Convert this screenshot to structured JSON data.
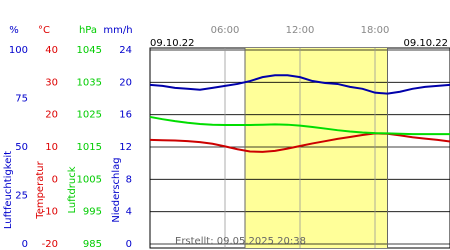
{
  "chart_data": {
    "type": "line",
    "date_left": "09.10.22",
    "date_right": "09.10.22",
    "created": "Erstellt: 09.05.2025 20:38",
    "x": [
      0,
      1,
      2,
      3,
      4,
      5,
      6,
      7,
      8,
      9,
      10,
      11,
      12,
      13,
      14,
      15,
      16,
      17,
      18,
      19,
      20,
      21,
      22,
      23,
      24
    ],
    "xlim": [
      0,
      24
    ],
    "xticks": [
      {
        "value": 6,
        "label": "06:00"
      },
      {
        "value": 12,
        "label": "12:00"
      },
      {
        "value": 18,
        "label": "18:00"
      }
    ],
    "daylight": [
      7.6,
      19
    ],
    "grid": true,
    "axes": [
      {
        "unit": "%",
        "title": "Luftfeuchtigkeit",
        "color": "#0000cc",
        "lim": [
          0,
          100
        ],
        "ticks": [
          0,
          25,
          50,
          75,
          100
        ]
      },
      {
        "unit": "°C",
        "title": "Temperatur",
        "color": "#dd0000",
        "lim": [
          -20,
          40
        ],
        "ticks": [
          -20,
          -10,
          0,
          10,
          20,
          30,
          40
        ]
      },
      {
        "unit": "hPa",
        "title": "Luftdruck",
        "color": "#00cc00",
        "lim": [
          985,
          1045
        ],
        "ticks": [
          985,
          995,
          1005,
          1015,
          1025,
          1035,
          1045
        ]
      },
      {
        "unit": "mm/h",
        "title": "Niederschlag",
        "color": "#0000cc",
        "lim": [
          0,
          24
        ],
        "ticks": [
          0,
          4,
          8,
          12,
          16,
          20,
          24
        ]
      }
    ],
    "series": [
      {
        "axis": 0,
        "color": "#0000aa",
        "values": [
          82,
          81.5,
          80.5,
          80,
          79.5,
          80.5,
          81.5,
          82.5,
          84,
          86,
          87,
          87,
          86,
          84,
          83,
          82.5,
          81,
          80,
          78,
          77.5,
          78.5,
          80,
          81,
          81.5,
          82
        ]
      },
      {
        "axis": 1,
        "color": "#cc0000",
        "values": [
          12.2,
          12.1,
          12,
          11.8,
          11.5,
          11,
          10.2,
          9.3,
          8.6,
          8.5,
          8.8,
          9.5,
          10.3,
          11.1,
          11.8,
          12.5,
          13.1,
          13.7,
          14.2,
          14.1,
          13.6,
          13,
          12.6,
          12.2,
          11.7
        ]
      },
      {
        "axis": 2,
        "color": "#00dd00",
        "values": [
          1024.3,
          1023.6,
          1023,
          1022.5,
          1022.1,
          1021.9,
          1021.8,
          1021.8,
          1021.8,
          1021.9,
          1022,
          1021.9,
          1021.6,
          1021.2,
          1020.7,
          1020.2,
          1019.8,
          1019.5,
          1019.3,
          1019.2,
          1019.1,
          1019,
          1019,
          1019,
          1019
        ]
      }
    ]
  }
}
